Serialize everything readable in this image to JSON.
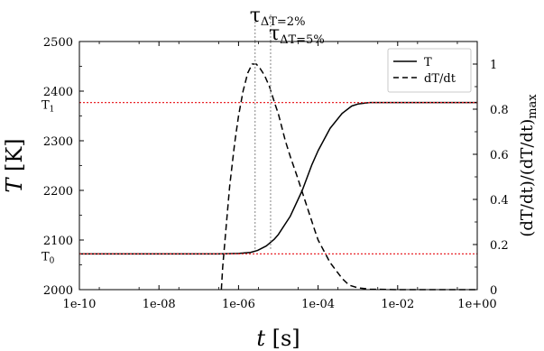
{
  "chart_data": {
    "type": "line",
    "xlabel_var": "t",
    "xlabel_unit": "[s]",
    "ylabel_var": "T",
    "ylabel_unit": "[K]",
    "y2label": "(dT/dt)/(dT/dt)",
    "y2label_sub": "max",
    "xscale": "log",
    "xlim": [
      1e-10,
      1
    ],
    "ylim": [
      2000,
      2500
    ],
    "y2lim": [
      0,
      1.1
    ],
    "xticks": [
      1e-10,
      1e-08,
      1e-06,
      0.0001,
      0.01,
      1
    ],
    "xtick_labels": [
      "1e-10",
      "1e-08",
      "1e-06",
      "1e-04",
      "1e-02",
      "1e+00"
    ],
    "yticks": [
      2000,
      2100,
      2200,
      2300,
      2400,
      2500
    ],
    "ytick_labels": [
      "2000",
      "2100",
      "2200",
      "2300",
      "2400",
      "2500"
    ],
    "y2ticks": [
      0,
      0.2,
      0.4,
      0.6,
      0.8,
      1
    ],
    "y2tick_labels": [
      "0",
      "0.2",
      "0.4",
      "0.6",
      "0.8",
      "1"
    ],
    "legend_position": "top-right",
    "series": [
      {
        "name": "T",
        "axis": "left",
        "style": "solid",
        "x": [
          1e-10,
          1e-09,
          1e-08,
          1e-07,
          3e-07,
          1e-06,
          2e-06,
          3e-06,
          5e-06,
          8e-06,
          1e-05,
          2e-05,
          4e-05,
          7e-05,
          0.0001,
          0.0002,
          0.0004,
          0.0007,
          0.001,
          0.0015,
          0.002,
          0.003,
          0.01,
          0.1,
          1
        ],
        "y": [
          2072,
          2072,
          2072,
          2072,
          2072,
          2073,
          2075,
          2079,
          2088,
          2102,
          2111,
          2148,
          2200,
          2252,
          2280,
          2325,
          2355,
          2370,
          2374,
          2376,
          2377,
          2377,
          2377,
          2377,
          2377
        ]
      },
      {
        "name": "dT/dt",
        "axis": "right",
        "style": "dashed",
        "x": [
          3.7e-07,
          4e-07,
          5e-07,
          6e-07,
          8e-07,
          1e-06,
          1.3e-06,
          1.7e-06,
          2.2e-06,
          2.8e-06,
          3.5e-06,
          4.5e-06,
          6e-06,
          8e-06,
          1e-05,
          1.5e-05,
          2e-05,
          3e-05,
          5e-05,
          8e-05,
          0.0001,
          0.0002,
          0.0004,
          0.0006,
          0.001,
          0.002,
          0.01,
          0.1,
          1
        ],
        "y": [
          0,
          0.1,
          0.3,
          0.46,
          0.65,
          0.77,
          0.88,
          0.96,
          1.0,
          1.0,
          0.98,
          0.95,
          0.9,
          0.83,
          0.78,
          0.66,
          0.59,
          0.5,
          0.38,
          0.27,
          0.22,
          0.12,
          0.05,
          0.02,
          0.008,
          0.002,
          0,
          0,
          0
        ]
      }
    ],
    "reference_lines": [
      {
        "orientation": "horizontal",
        "axis": "left",
        "value": 2377,
        "color": "#e8252a",
        "style": "dotted",
        "label": "T",
        "label_sub": "1"
      },
      {
        "orientation": "horizontal",
        "axis": "left",
        "value": 2072,
        "color": "#e8252a",
        "style": "dotted",
        "label": "T",
        "label_sub": "0"
      },
      {
        "orientation": "vertical",
        "value": 2.6e-06,
        "color": "#999999",
        "style": "dotted",
        "label": "τ",
        "label_sub": "ΔT=2%"
      },
      {
        "orientation": "vertical",
        "value": 6.4e-06,
        "color": "#999999",
        "style": "dotted",
        "label": "τ",
        "label_sub": "ΔT=5%"
      }
    ]
  }
}
